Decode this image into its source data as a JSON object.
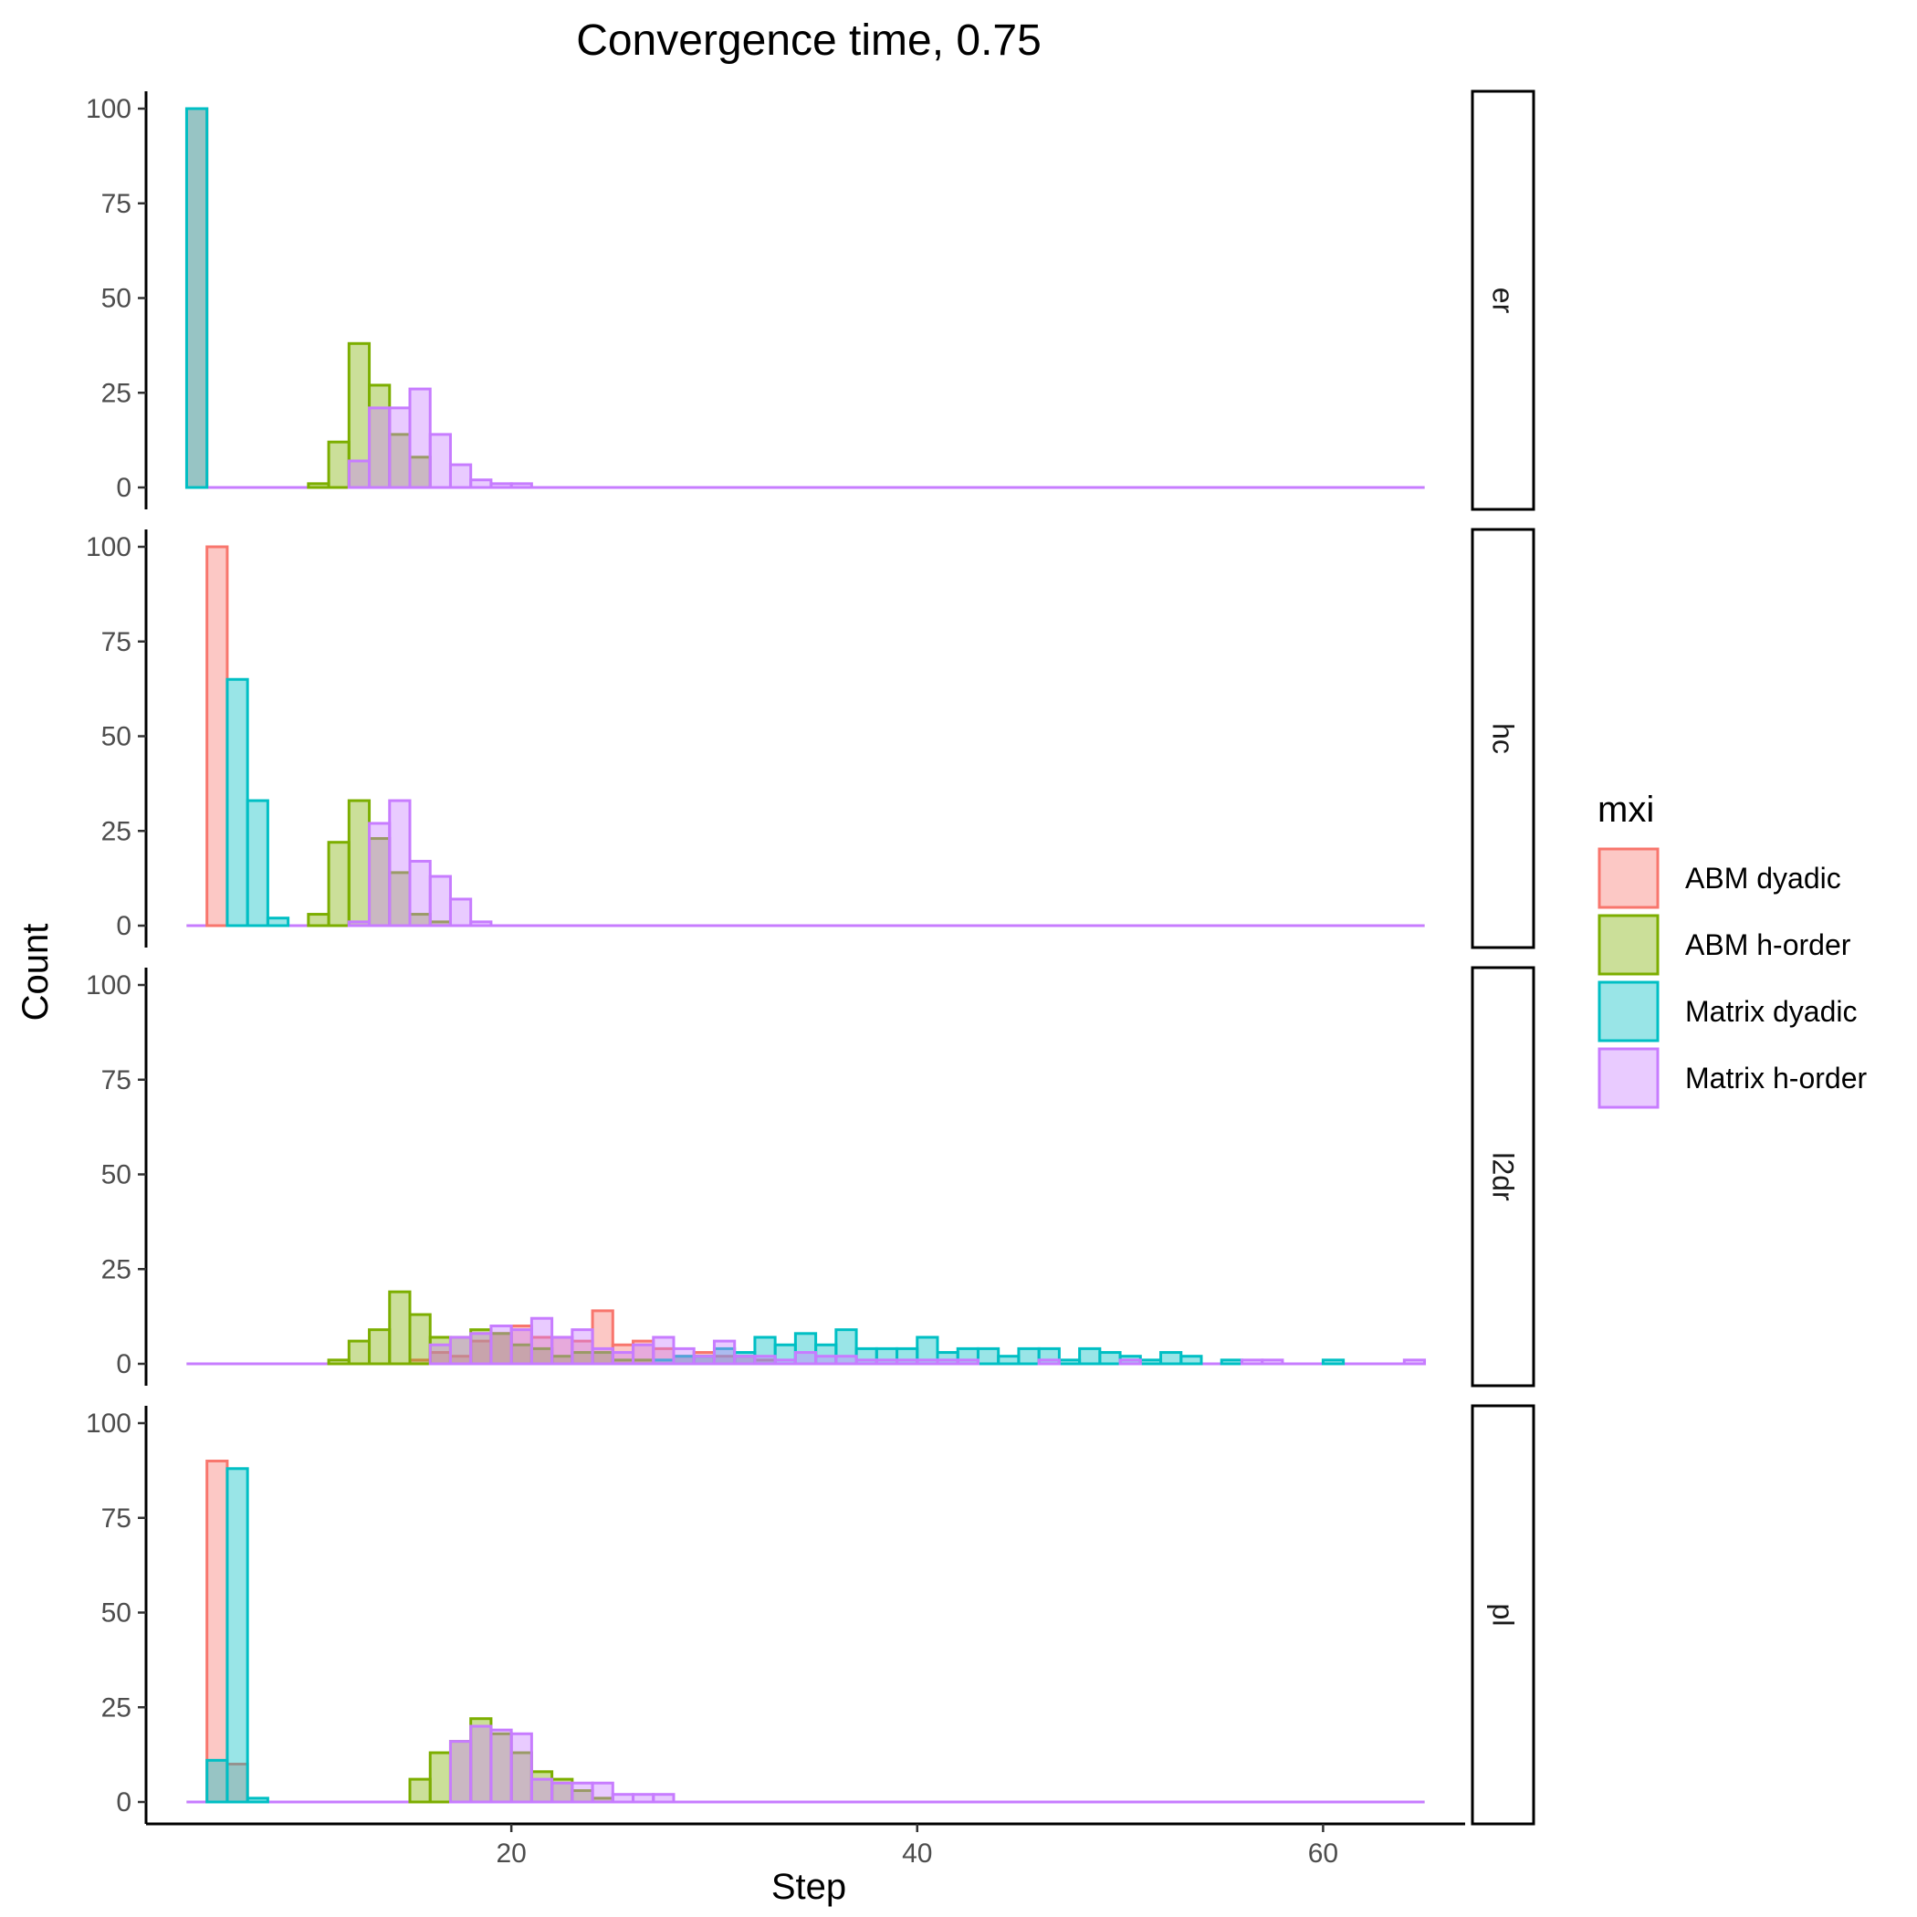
{
  "chart_data": {
    "type": "histogram",
    "title": "Convergence time, 0.75",
    "xlabel": "Step",
    "ylabel": "Count",
    "xlim": [
      2,
      67
    ],
    "ylim": [
      0,
      100
    ],
    "xticks": [
      20,
      40,
      60
    ],
    "yticks": [
      0,
      25,
      50,
      75,
      100
    ],
    "bin_width": 1,
    "legend": {
      "title": "mxi",
      "position": "right",
      "items": [
        "ABM dyadic",
        "ABM h-order",
        "Matrix dyadic",
        "Matrix h-order"
      ]
    },
    "colors": {
      "ABM dyadic": "#F8766D",
      "ABM h-order": "#7CAE00",
      "Matrix dyadic": "#00BFC4",
      "Matrix h-order": "#C77CFF"
    },
    "panels": [
      {
        "label": "er",
        "series": [
          {
            "name": "ABM dyadic",
            "values": [
              [
                4.5,
                100
              ]
            ]
          },
          {
            "name": "ABM h-order",
            "values": [
              [
                10.5,
                1
              ],
              [
                11.5,
                12
              ],
              [
                12.5,
                38
              ],
              [
                13.5,
                27
              ],
              [
                14.5,
                14
              ],
              [
                15.5,
                8
              ]
            ]
          },
          {
            "name": "Matrix dyadic",
            "values": [
              [
                4.5,
                100
              ]
            ]
          },
          {
            "name": "Matrix h-order",
            "values": [
              [
                12.5,
                7
              ],
              [
                13.5,
                21
              ],
              [
                14.5,
                21
              ],
              [
                15.5,
                26
              ],
              [
                16.5,
                14
              ],
              [
                17.5,
                6
              ],
              [
                18.5,
                2
              ],
              [
                19.5,
                1
              ],
              [
                20.5,
                1
              ]
            ]
          }
        ]
      },
      {
        "label": "hc",
        "series": [
          {
            "name": "ABM dyadic",
            "values": [
              [
                5.5,
                100
              ]
            ]
          },
          {
            "name": "ABM h-order",
            "values": [
              [
                10.5,
                3
              ],
              [
                11.5,
                22
              ],
              [
                12.5,
                33
              ],
              [
                13.5,
                23
              ],
              [
                14.5,
                14
              ],
              [
                15.5,
                3
              ],
              [
                16.5,
                1
              ]
            ]
          },
          {
            "name": "Matrix dyadic",
            "values": [
              [
                6.5,
                65
              ],
              [
                7.5,
                33
              ],
              [
                8.5,
                2
              ]
            ]
          },
          {
            "name": "Matrix h-order",
            "values": [
              [
                12.5,
                1
              ],
              [
                13.5,
                27
              ],
              [
                14.5,
                33
              ],
              [
                15.5,
                17
              ],
              [
                16.5,
                13
              ],
              [
                17.5,
                7
              ],
              [
                18.5,
                1
              ]
            ]
          }
        ]
      },
      {
        "label": "l2dr",
        "series": [
          {
            "name": "ABM dyadic",
            "values": [
              [
                15.5,
                1
              ],
              [
                16.5,
                3
              ],
              [
                17.5,
                2
              ],
              [
                18.5,
                6
              ],
              [
                19.5,
                8
              ],
              [
                20.5,
                10
              ],
              [
                21.5,
                7
              ],
              [
                22.5,
                7
              ],
              [
                23.5,
                6
              ],
              [
                24.5,
                14
              ],
              [
                25.5,
                5
              ],
              [
                26.5,
                6
              ],
              [
                27.5,
                4
              ],
              [
                28.5,
                2
              ],
              [
                29.5,
                3
              ],
              [
                30.5,
                2
              ],
              [
                31.5,
                2
              ],
              [
                32.5,
                1
              ]
            ]
          },
          {
            "name": "ABM h-order",
            "values": [
              [
                11.5,
                1
              ],
              [
                12.5,
                6
              ],
              [
                13.5,
                9
              ],
              [
                14.5,
                19
              ],
              [
                15.5,
                13
              ],
              [
                16.5,
                7
              ],
              [
                17.5,
                7
              ],
              [
                18.5,
                9
              ],
              [
                19.5,
                8
              ],
              [
                20.5,
                5
              ],
              [
                21.5,
                4
              ],
              [
                22.5,
                2
              ],
              [
                23.5,
                3
              ],
              [
                24.5,
                3
              ],
              [
                25.5,
                1
              ],
              [
                26.5,
                1
              ]
            ]
          },
          {
            "name": "Matrix dyadic",
            "values": [
              [
                27.5,
                1
              ],
              [
                28.5,
                2
              ],
              [
                29.5,
                2
              ],
              [
                30.5,
                4
              ],
              [
                31.5,
                3
              ],
              [
                32.5,
                7
              ],
              [
                33.5,
                5
              ],
              [
                34.5,
                8
              ],
              [
                35.5,
                5
              ],
              [
                36.5,
                9
              ],
              [
                37.5,
                4
              ],
              [
                38.5,
                4
              ],
              [
                39.5,
                4
              ],
              [
                40.5,
                7
              ],
              [
                41.5,
                3
              ],
              [
                42.5,
                4
              ],
              [
                43.5,
                4
              ],
              [
                44.5,
                2
              ],
              [
                45.5,
                4
              ],
              [
                46.5,
                4
              ],
              [
                47.5,
                1
              ],
              [
                48.5,
                4
              ],
              [
                49.5,
                3
              ],
              [
                50.5,
                2
              ],
              [
                51.5,
                1
              ],
              [
                52.5,
                3
              ],
              [
                53.5,
                2
              ],
              [
                55.5,
                1
              ],
              [
                60.5,
                1
              ]
            ]
          },
          {
            "name": "Matrix h-order",
            "values": [
              [
                16.5,
                5
              ],
              [
                17.5,
                7
              ],
              [
                18.5,
                8
              ],
              [
                19.5,
                10
              ],
              [
                20.5,
                9
              ],
              [
                21.5,
                12
              ],
              [
                22.5,
                7
              ],
              [
                23.5,
                9
              ],
              [
                24.5,
                4
              ],
              [
                25.5,
                3
              ],
              [
                26.5,
                5
              ],
              [
                27.5,
                7
              ],
              [
                28.5,
                4
              ],
              [
                29.5,
                2
              ],
              [
                30.5,
                6
              ],
              [
                31.5,
                2
              ],
              [
                32.5,
                2
              ],
              [
                33.5,
                1
              ],
              [
                34.5,
                3
              ],
              [
                35.5,
                2
              ],
              [
                36.5,
                2
              ],
              [
                37.5,
                1
              ],
              [
                38.5,
                1
              ],
              [
                39.5,
                1
              ],
              [
                40.5,
                1
              ],
              [
                41.5,
                1
              ],
              [
                42.5,
                1
              ],
              [
                46.5,
                1
              ],
              [
                50.5,
                1
              ],
              [
                56.5,
                1
              ],
              [
                57.5,
                1
              ],
              [
                64.5,
                1
              ]
            ]
          }
        ]
      },
      {
        "label": "pl",
        "series": [
          {
            "name": "ABM dyadic",
            "values": [
              [
                5.5,
                90
              ],
              [
                6.5,
                10
              ]
            ]
          },
          {
            "name": "ABM h-order",
            "values": [
              [
                15.5,
                6
              ],
              [
                16.5,
                13
              ],
              [
                17.5,
                16
              ],
              [
                18.5,
                22
              ],
              [
                19.5,
                18
              ],
              [
                20.5,
                13
              ],
              [
                21.5,
                8
              ],
              [
                22.5,
                6
              ],
              [
                23.5,
                3
              ],
              [
                24.5,
                1
              ]
            ]
          },
          {
            "name": "Matrix dyadic",
            "values": [
              [
                5.5,
                11
              ],
              [
                6.5,
                88
              ],
              [
                7.5,
                1
              ]
            ]
          },
          {
            "name": "Matrix h-order",
            "values": [
              [
                17.5,
                16
              ],
              [
                18.5,
                20
              ],
              [
                19.5,
                19
              ],
              [
                20.5,
                18
              ],
              [
                21.5,
                6
              ],
              [
                22.5,
                5
              ],
              [
                23.5,
                5
              ],
              [
                24.5,
                5
              ],
              [
                25.5,
                2
              ],
              [
                26.5,
                2
              ],
              [
                27.5,
                2
              ]
            ]
          }
        ]
      }
    ]
  }
}
